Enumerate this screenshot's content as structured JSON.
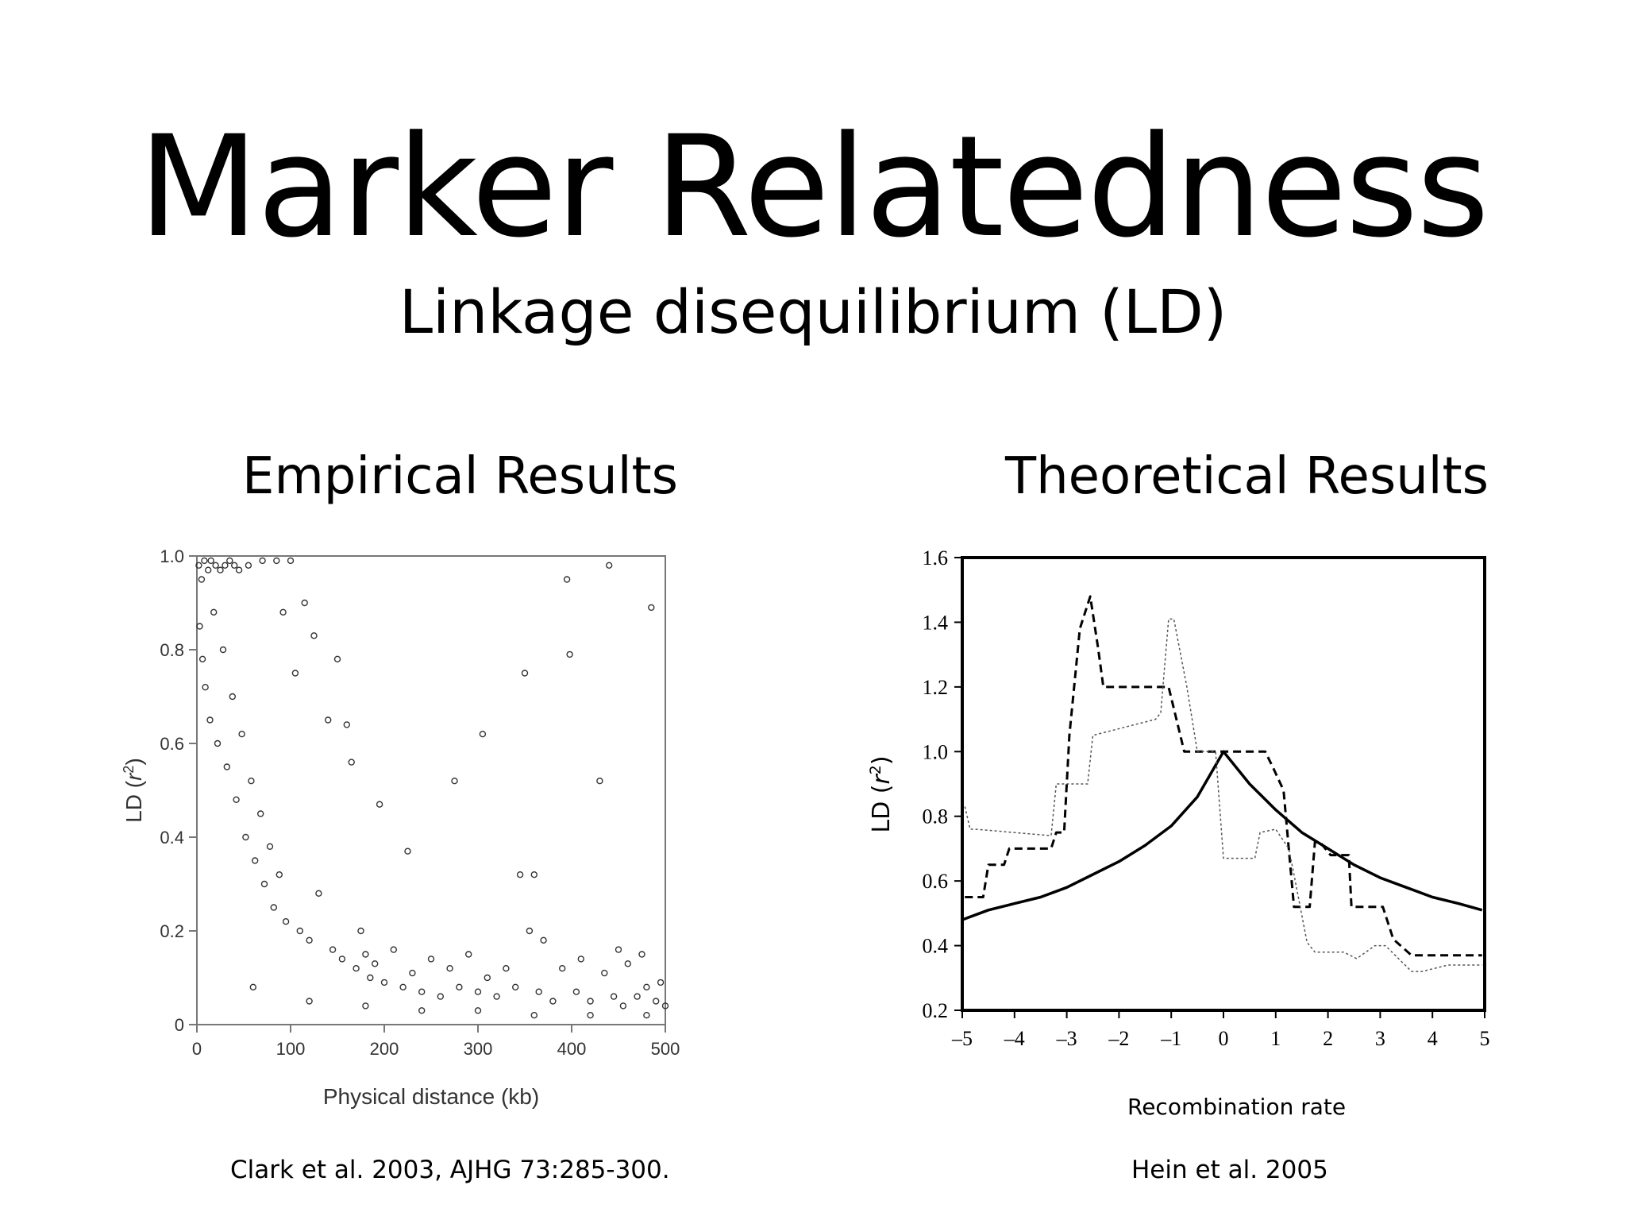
{
  "slide": {
    "title": "Marker Relatedness",
    "subtitle": "Linkage disequilibrium (LD)",
    "left_heading": "Empirical Results",
    "right_heading": "Theoretical Results",
    "left_citation": "Clark et al. 2003, AJHG 73:285-300.",
    "right_citation": "Hein et al. 2005"
  },
  "chart_data": [
    {
      "type": "scatter",
      "xlabel": "Physical distance (kb)",
      "ylabel": "LD (r2)",
      "xlim": [
        0,
        500
      ],
      "ylim": [
        0,
        1.0
      ],
      "xticks": [
        "0",
        "100",
        "200",
        "300",
        "400",
        "500"
      ],
      "yticks": [
        "0",
        "0.2",
        "0.4",
        "0.6",
        "0.8",
        "1.0"
      ],
      "marker_color": "#333333",
      "points": [
        [
          2,
          0.98
        ],
        [
          5,
          0.95
        ],
        [
          8,
          0.99
        ],
        [
          12,
          0.97
        ],
        [
          15,
          0.99
        ],
        [
          20,
          0.98
        ],
        [
          25,
          0.97
        ],
        [
          30,
          0.98
        ],
        [
          35,
          0.99
        ],
        [
          40,
          0.98
        ],
        [
          45,
          0.97
        ],
        [
          55,
          0.98
        ],
        [
          70,
          0.99
        ],
        [
          85,
          0.99
        ],
        [
          100,
          0.99
        ],
        [
          3,
          0.85
        ],
        [
          6,
          0.78
        ],
        [
          9,
          0.72
        ],
        [
          14,
          0.65
        ],
        [
          18,
          0.88
        ],
        [
          22,
          0.6
        ],
        [
          28,
          0.8
        ],
        [
          32,
          0.55
        ],
        [
          38,
          0.7
        ],
        [
          42,
          0.48
        ],
        [
          48,
          0.62
        ],
        [
          52,
          0.4
        ],
        [
          58,
          0.52
        ],
        [
          62,
          0.35
        ],
        [
          68,
          0.45
        ],
        [
          72,
          0.3
        ],
        [
          78,
          0.38
        ],
        [
          82,
          0.25
        ],
        [
          88,
          0.32
        ],
        [
          92,
          0.88
        ],
        [
          95,
          0.22
        ],
        [
          105,
          0.75
        ],
        [
          110,
          0.2
        ],
        [
          115,
          0.9
        ],
        [
          120,
          0.18
        ],
        [
          125,
          0.83
        ],
        [
          130,
          0.28
        ],
        [
          140,
          0.65
        ],
        [
          145,
          0.16
        ],
        [
          150,
          0.78
        ],
        [
          155,
          0.14
        ],
        [
          160,
          0.64
        ],
        [
          165,
          0.56
        ],
        [
          170,
          0.12
        ],
        [
          175,
          0.2
        ],
        [
          180,
          0.15
        ],
        [
          185,
          0.1
        ],
        [
          190,
          0.13
        ],
        [
          195,
          0.47
        ],
        [
          200,
          0.09
        ],
        [
          210,
          0.16
        ],
        [
          220,
          0.08
        ],
        [
          225,
          0.37
        ],
        [
          230,
          0.11
        ],
        [
          240,
          0.07
        ],
        [
          250,
          0.14
        ],
        [
          260,
          0.06
        ],
        [
          270,
          0.12
        ],
        [
          275,
          0.52
        ],
        [
          280,
          0.08
        ],
        [
          290,
          0.15
        ],
        [
          300,
          0.07
        ],
        [
          305,
          0.62
        ],
        [
          310,
          0.1
        ],
        [
          320,
          0.06
        ],
        [
          330,
          0.12
        ],
        [
          340,
          0.08
        ],
        [
          345,
          0.32
        ],
        [
          350,
          0.75
        ],
        [
          355,
          0.2
        ],
        [
          360,
          0.32
        ],
        [
          365,
          0.07
        ],
        [
          370,
          0.18
        ],
        [
          380,
          0.05
        ],
        [
          390,
          0.12
        ],
        [
          395,
          0.95
        ],
        [
          398,
          0.79
        ],
        [
          405,
          0.07
        ],
        [
          410,
          0.14
        ],
        [
          420,
          0.05
        ],
        [
          430,
          0.52
        ],
        [
          435,
          0.11
        ],
        [
          440,
          0.98
        ],
        [
          445,
          0.06
        ],
        [
          450,
          0.16
        ],
        [
          455,
          0.04
        ],
        [
          460,
          0.13
        ],
        [
          470,
          0.06
        ],
        [
          475,
          0.15
        ],
        [
          480,
          0.08
        ],
        [
          485,
          0.89
        ],
        [
          490,
          0.05
        ],
        [
          495,
          0.09
        ],
        [
          500,
          0.04
        ],
        [
          60,
          0.08
        ],
        [
          120,
          0.05
        ],
        [
          180,
          0.04
        ],
        [
          240,
          0.03
        ],
        [
          300,
          0.03
        ],
        [
          360,
          0.02
        ],
        [
          420,
          0.02
        ],
        [
          480,
          0.02
        ]
      ]
    },
    {
      "type": "line",
      "xlabel": "Recombination rate",
      "ylabel": "LD (r2)",
      "xlim": [
        -5,
        5
      ],
      "ylim": [
        0.2,
        1.6
      ],
      "xticks": [
        "–5",
        "–4",
        "–3",
        "–2",
        "–1",
        "0",
        "1",
        "2",
        "3",
        "4",
        "5"
      ],
      "yticks": [
        "0.2",
        "0.4",
        "0.6",
        "0.8",
        "1.0",
        "1.2",
        "1.4",
        "1.6"
      ],
      "series": [
        {
          "style": "solid",
          "x": [
            -5,
            -4.5,
            -4,
            -3.5,
            -3,
            -2.5,
            -2,
            -1.5,
            -1,
            -0.5,
            0,
            0.5,
            1,
            1.5,
            2,
            2.5,
            3,
            3.5,
            4,
            4.5,
            4.95
          ],
          "y": [
            0.48,
            0.51,
            0.53,
            0.55,
            0.58,
            0.62,
            0.66,
            0.71,
            0.77,
            0.86,
            1.0,
            0.9,
            0.82,
            0.75,
            0.7,
            0.65,
            0.61,
            0.58,
            0.55,
            0.53,
            0.51
          ]
        },
        {
          "style": "dashed",
          "x": [
            -4.95,
            -4.6,
            -4.5,
            -4.2,
            -4.1,
            -3.3,
            -3.2,
            -3.05,
            -2.95,
            -2.75,
            -2.55,
            -2.4,
            -2.3,
            -1.5,
            -1.35,
            -1.2,
            -1.05,
            -0.75,
            0,
            0.8,
            0.95,
            1.15,
            1.35,
            1.55,
            1.65,
            1.75,
            1.85,
            2.05,
            2.2,
            2.4,
            2.45,
            2.55,
            2.7,
            3.05,
            3.25,
            3.6,
            4.95
          ],
          "y": [
            0.55,
            0.55,
            0.65,
            0.65,
            0.7,
            0.7,
            0.75,
            0.75,
            1.05,
            1.38,
            1.48,
            1.32,
            1.2,
            1.2,
            1.2,
            1.2,
            1.2,
            1.0,
            1.0,
            1.0,
            0.95,
            0.88,
            0.52,
            0.52,
            0.52,
            0.72,
            0.72,
            0.68,
            0.68,
            0.68,
            0.52,
            0.52,
            0.52,
            0.52,
            0.42,
            0.37,
            0.37
          ]
        },
        {
          "style": "dotted",
          "x": [
            -4.95,
            -4.85,
            -4.75,
            -3.3,
            -3.2,
            -2.6,
            -2.5,
            -1.3,
            -1.2,
            -1.05,
            -0.95,
            -0.7,
            -0.5,
            -0.15,
            0,
            0.35,
            0.6,
            0.7,
            1.0,
            1.25,
            1.35,
            1.6,
            1.75,
            2.3,
            2.55,
            2.9,
            3.1,
            3.6,
            3.8,
            4.3,
            4.95
          ],
          "y": [
            0.83,
            0.76,
            0.76,
            0.74,
            0.9,
            0.9,
            1.05,
            1.1,
            1.12,
            1.41,
            1.41,
            1.2,
            1.0,
            1.0,
            0.67,
            0.67,
            0.67,
            0.75,
            0.76,
            0.7,
            0.62,
            0.41,
            0.38,
            0.38,
            0.36,
            0.4,
            0.4,
            0.32,
            0.32,
            0.34,
            0.34
          ]
        }
      ]
    }
  ]
}
